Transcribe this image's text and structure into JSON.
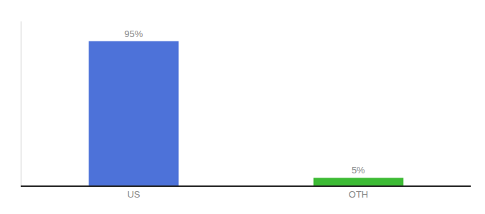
{
  "chart_data": {
    "type": "bar",
    "categories": [
      "US",
      "OTH"
    ],
    "values": [
      95,
      5
    ],
    "value_labels": [
      "95%",
      "5%"
    ],
    "colors": [
      "#4d72d9",
      "#3dbb35"
    ],
    "ylim": [
      0,
      108
    ],
    "data_labels": true,
    "tick_labels": "x",
    "grid": false
  }
}
